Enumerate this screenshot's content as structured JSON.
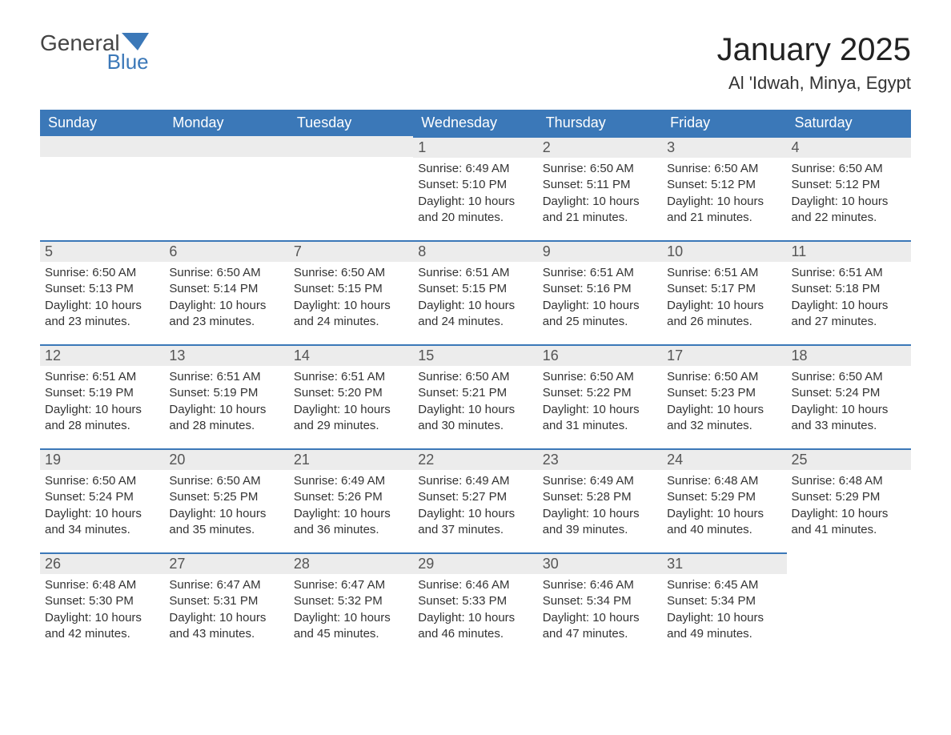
{
  "brand": {
    "name_a": "General",
    "name_b": "Blue",
    "accent": "#3b78b8"
  },
  "title": "January 2025",
  "location": "Al 'Idwah, Minya, Egypt",
  "colors": {
    "header_bg": "#3b78b8",
    "header_text": "#ffffff",
    "daybar_bg": "#ececec",
    "daybar_border": "#3b78b8",
    "text": "#333333"
  },
  "weekdays": [
    "Sunday",
    "Monday",
    "Tuesday",
    "Wednesday",
    "Thursday",
    "Friday",
    "Saturday"
  ],
  "first_weekday_index": 3,
  "days": {
    "1": {
      "sunrise": "6:49 AM",
      "sunset": "5:10 PM",
      "daylight": "10 hours and 20 minutes."
    },
    "2": {
      "sunrise": "6:50 AM",
      "sunset": "5:11 PM",
      "daylight": "10 hours and 21 minutes."
    },
    "3": {
      "sunrise": "6:50 AM",
      "sunset": "5:12 PM",
      "daylight": "10 hours and 21 minutes."
    },
    "4": {
      "sunrise": "6:50 AM",
      "sunset": "5:12 PM",
      "daylight": "10 hours and 22 minutes."
    },
    "5": {
      "sunrise": "6:50 AM",
      "sunset": "5:13 PM",
      "daylight": "10 hours and 23 minutes."
    },
    "6": {
      "sunrise": "6:50 AM",
      "sunset": "5:14 PM",
      "daylight": "10 hours and 23 minutes."
    },
    "7": {
      "sunrise": "6:50 AM",
      "sunset": "5:15 PM",
      "daylight": "10 hours and 24 minutes."
    },
    "8": {
      "sunrise": "6:51 AM",
      "sunset": "5:15 PM",
      "daylight": "10 hours and 24 minutes."
    },
    "9": {
      "sunrise": "6:51 AM",
      "sunset": "5:16 PM",
      "daylight": "10 hours and 25 minutes."
    },
    "10": {
      "sunrise": "6:51 AM",
      "sunset": "5:17 PM",
      "daylight": "10 hours and 26 minutes."
    },
    "11": {
      "sunrise": "6:51 AM",
      "sunset": "5:18 PM",
      "daylight": "10 hours and 27 minutes."
    },
    "12": {
      "sunrise": "6:51 AM",
      "sunset": "5:19 PM",
      "daylight": "10 hours and 28 minutes."
    },
    "13": {
      "sunrise": "6:51 AM",
      "sunset": "5:19 PM",
      "daylight": "10 hours and 28 minutes."
    },
    "14": {
      "sunrise": "6:51 AM",
      "sunset": "5:20 PM",
      "daylight": "10 hours and 29 minutes."
    },
    "15": {
      "sunrise": "6:50 AM",
      "sunset": "5:21 PM",
      "daylight": "10 hours and 30 minutes."
    },
    "16": {
      "sunrise": "6:50 AM",
      "sunset": "5:22 PM",
      "daylight": "10 hours and 31 minutes."
    },
    "17": {
      "sunrise": "6:50 AM",
      "sunset": "5:23 PM",
      "daylight": "10 hours and 32 minutes."
    },
    "18": {
      "sunrise": "6:50 AM",
      "sunset": "5:24 PM",
      "daylight": "10 hours and 33 minutes."
    },
    "19": {
      "sunrise": "6:50 AM",
      "sunset": "5:24 PM",
      "daylight": "10 hours and 34 minutes."
    },
    "20": {
      "sunrise": "6:50 AM",
      "sunset": "5:25 PM",
      "daylight": "10 hours and 35 minutes."
    },
    "21": {
      "sunrise": "6:49 AM",
      "sunset": "5:26 PM",
      "daylight": "10 hours and 36 minutes."
    },
    "22": {
      "sunrise": "6:49 AM",
      "sunset": "5:27 PM",
      "daylight": "10 hours and 37 minutes."
    },
    "23": {
      "sunrise": "6:49 AM",
      "sunset": "5:28 PM",
      "daylight": "10 hours and 39 minutes."
    },
    "24": {
      "sunrise": "6:48 AM",
      "sunset": "5:29 PM",
      "daylight": "10 hours and 40 minutes."
    },
    "25": {
      "sunrise": "6:48 AM",
      "sunset": "5:29 PM",
      "daylight": "10 hours and 41 minutes."
    },
    "26": {
      "sunrise": "6:48 AM",
      "sunset": "5:30 PM",
      "daylight": "10 hours and 42 minutes."
    },
    "27": {
      "sunrise": "6:47 AM",
      "sunset": "5:31 PM",
      "daylight": "10 hours and 43 minutes."
    },
    "28": {
      "sunrise": "6:47 AM",
      "sunset": "5:32 PM",
      "daylight": "10 hours and 45 minutes."
    },
    "29": {
      "sunrise": "6:46 AM",
      "sunset": "5:33 PM",
      "daylight": "10 hours and 46 minutes."
    },
    "30": {
      "sunrise": "6:46 AM",
      "sunset": "5:34 PM",
      "daylight": "10 hours and 47 minutes."
    },
    "31": {
      "sunrise": "6:45 AM",
      "sunset": "5:34 PM",
      "daylight": "10 hours and 49 minutes."
    }
  },
  "labels": {
    "sunrise": "Sunrise:",
    "sunset": "Sunset:",
    "daylight": "Daylight:"
  }
}
